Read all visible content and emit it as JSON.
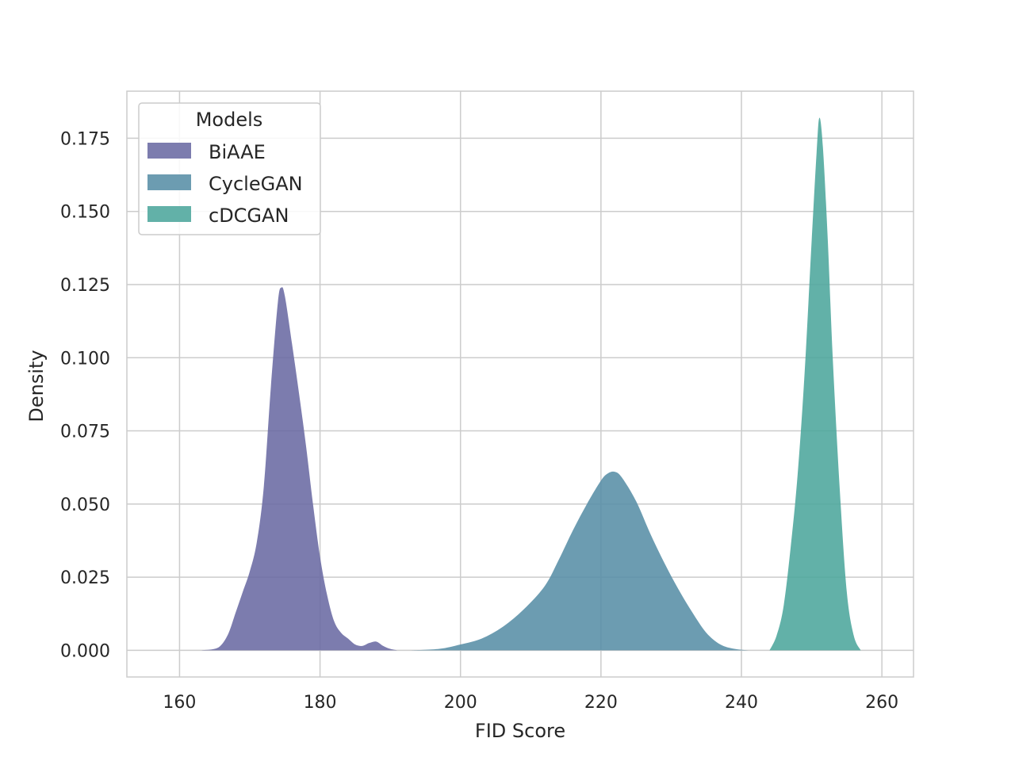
{
  "chart_data": {
    "type": "area",
    "xlabel": "FID Score",
    "ylabel": "Density",
    "xlim": [
      152.5,
      264.5
    ],
    "ylim": [
      -0.0091,
      0.1911
    ],
    "x_ticks": [
      160,
      180,
      200,
      220,
      240,
      260
    ],
    "x_tick_labels": [
      "160",
      "180",
      "200",
      "220",
      "240",
      "260"
    ],
    "y_ticks": [
      0.0,
      0.025,
      0.05,
      0.075,
      0.1,
      0.125,
      0.15,
      0.175
    ],
    "y_tick_labels": [
      "0.000",
      "0.025",
      "0.050",
      "0.075",
      "0.100",
      "0.125",
      "0.150",
      "0.175"
    ],
    "grid": true,
    "legend": {
      "title": "Models",
      "placement": "top-left"
    },
    "series": [
      {
        "name": "BiAAE",
        "color": "#6a6aa3",
        "points": [
          [
            163,
            0.0
          ],
          [
            165,
            0.0005
          ],
          [
            166,
            0.002
          ],
          [
            167,
            0.006
          ],
          [
            168,
            0.013
          ],
          [
            169,
            0.02
          ],
          [
            170,
            0.027
          ],
          [
            171,
            0.037
          ],
          [
            172,
            0.056
          ],
          [
            173,
            0.09
          ],
          [
            174,
            0.119
          ],
          [
            174.5,
            0.124
          ],
          [
            175,
            0.121
          ],
          [
            176,
            0.105
          ],
          [
            177,
            0.088
          ],
          [
            178,
            0.07
          ],
          [
            179,
            0.05
          ],
          [
            180,
            0.032
          ],
          [
            181,
            0.019
          ],
          [
            182,
            0.01
          ],
          [
            183,
            0.006
          ],
          [
            184,
            0.004
          ],
          [
            185,
            0.002
          ],
          [
            186,
            0.0015
          ],
          [
            187,
            0.0025
          ],
          [
            188,
            0.003
          ],
          [
            189,
            0.0015
          ],
          [
            190,
            0.0005
          ],
          [
            191,
            0.0
          ]
        ]
      },
      {
        "name": "CycleGAN",
        "color": "#588ea6",
        "points": [
          [
            193,
            0.0
          ],
          [
            197,
            0.0005
          ],
          [
            200,
            0.002
          ],
          [
            203,
            0.004
          ],
          [
            206,
            0.008
          ],
          [
            209,
            0.014
          ],
          [
            212,
            0.022
          ],
          [
            214,
            0.031
          ],
          [
            216,
            0.041
          ],
          [
            218,
            0.05
          ],
          [
            220,
            0.058
          ],
          [
            221,
            0.0605
          ],
          [
            222,
            0.061
          ],
          [
            223,
            0.059
          ],
          [
            225,
            0.051
          ],
          [
            227,
            0.04
          ],
          [
            229,
            0.03
          ],
          [
            231,
            0.021
          ],
          [
            233,
            0.013
          ],
          [
            235,
            0.006
          ],
          [
            237,
            0.002
          ],
          [
            239,
            0.0005
          ],
          [
            241,
            0.0
          ]
        ]
      },
      {
        "name": "cDCGAN",
        "color": "#4ca69c",
        "points": [
          [
            244,
            0.0
          ],
          [
            245,
            0.005
          ],
          [
            246,
            0.015
          ],
          [
            247,
            0.035
          ],
          [
            248,
            0.06
          ],
          [
            249,
            0.095
          ],
          [
            250,
            0.14
          ],
          [
            250.7,
            0.17
          ],
          [
            251.1,
            0.182
          ],
          [
            251.6,
            0.172
          ],
          [
            252.3,
            0.14
          ],
          [
            253,
            0.1
          ],
          [
            254,
            0.055
          ],
          [
            255,
            0.02
          ],
          [
            256,
            0.005
          ],
          [
            257,
            0.0
          ]
        ]
      }
    ]
  }
}
